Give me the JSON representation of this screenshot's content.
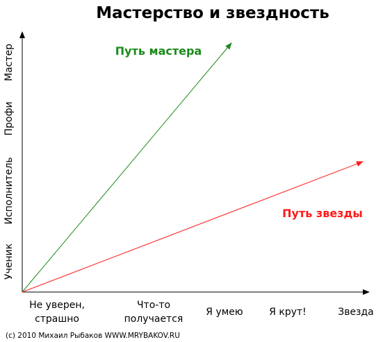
{
  "title": "Мастерство и звездность",
  "y_axis": [
    "Ученик",
    "Исполнитель",
    "Профи",
    "Мастер"
  ],
  "x_axis": [
    [
      "Не уверен,",
      "страшно"
    ],
    [
      "Что-то",
      "получается"
    ],
    [
      "Я умею"
    ],
    [
      "Я крут!"
    ],
    [
      "Звезда"
    ]
  ],
  "paths": {
    "master": "Путь мастера",
    "star": "Путь звезды"
  },
  "footer": "(c) 2010 Михаил Рыбаков WWW.MRYBAKOV.RU"
}
